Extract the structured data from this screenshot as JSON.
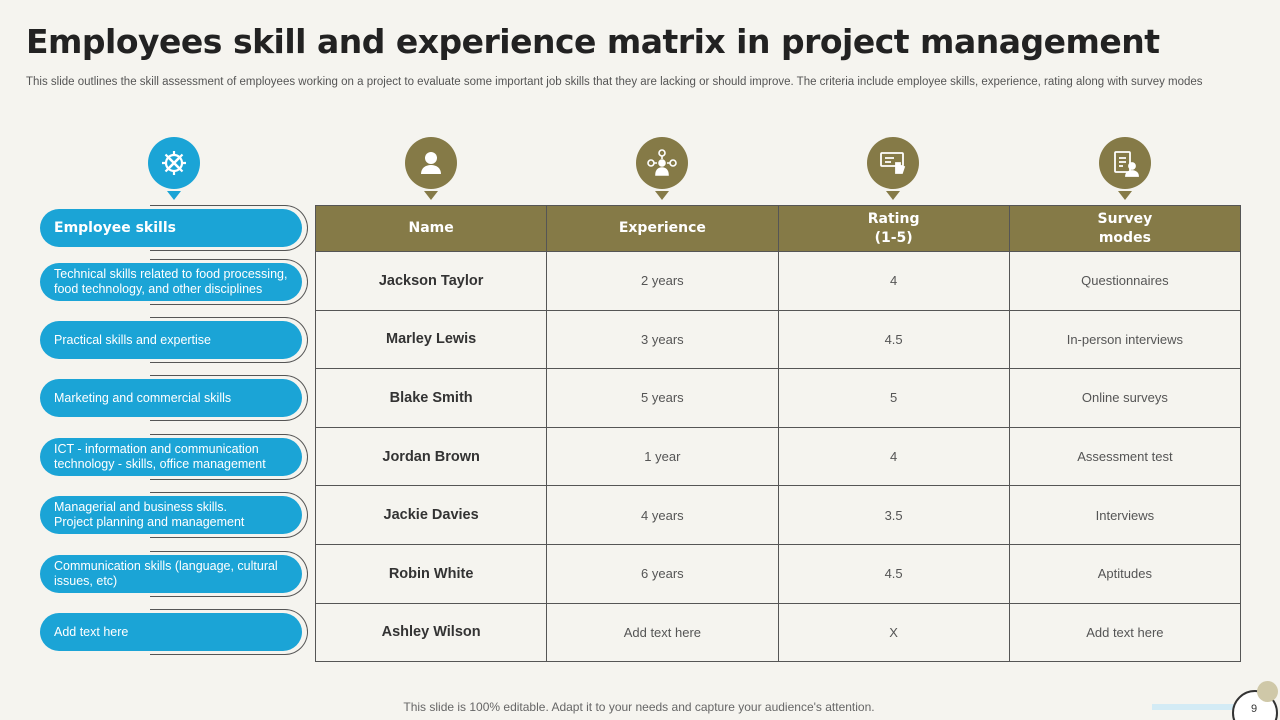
{
  "title": "Employees skill and experience matrix in project management",
  "subtitle": "This slide outlines the skill assessment of employees working on a project to evaluate some important job skills that they are lacking or should improve. The criteria include employee skills, experience, rating along with survey modes",
  "icons": {
    "skills": "tools-gear-icon",
    "name": "user-icon",
    "experience": "network-person-icon",
    "rating": "rating-hand-icon",
    "survey": "clipboard-person-icon"
  },
  "skills_header": "Employee skills",
  "skills": [
    "Technical skills related to food processing,\n food technology, and other disciplines",
    "Practical skills and expertise",
    "Marketing and commercial skills",
    "ICT  - information  and communication\n technology - skills, office management",
    "Managerial  and business skills.\nProject planning  and management",
    "Communication  skills (language,  cultural\nissues, etc)",
    "Add text here"
  ],
  "table": {
    "headers": [
      "Name",
      "Experience",
      "Rating\n(1-5)",
      "Survey\nmodes"
    ],
    "rows": [
      [
        "Jackson  Taylor",
        "2 years",
        "4",
        "Questionnaires"
      ],
      [
        "Marley Lewis",
        "3 years",
        "4.5",
        "In-person  interviews"
      ],
      [
        "Blake Smith",
        "5 years",
        "5",
        "Online surveys"
      ],
      [
        "Jordan Brown",
        "1 year",
        "4",
        "Assessment test"
      ],
      [
        "Jackie Davies",
        "4 years",
        "3.5",
        "Interviews"
      ],
      [
        "Robin White",
        "6 years",
        "4.5",
        "Aptitudes"
      ],
      [
        "Ashley Wilson",
        "Add text here",
        "X",
        "Add text here"
      ]
    ]
  },
  "footer": "This slide is 100% editable. Adapt it to your needs and capture your audience's attention.",
  "page_number": "9",
  "colors": {
    "blue": "#1ba4d6",
    "olive": "#857a47",
    "background": "#f5f4ef"
  }
}
